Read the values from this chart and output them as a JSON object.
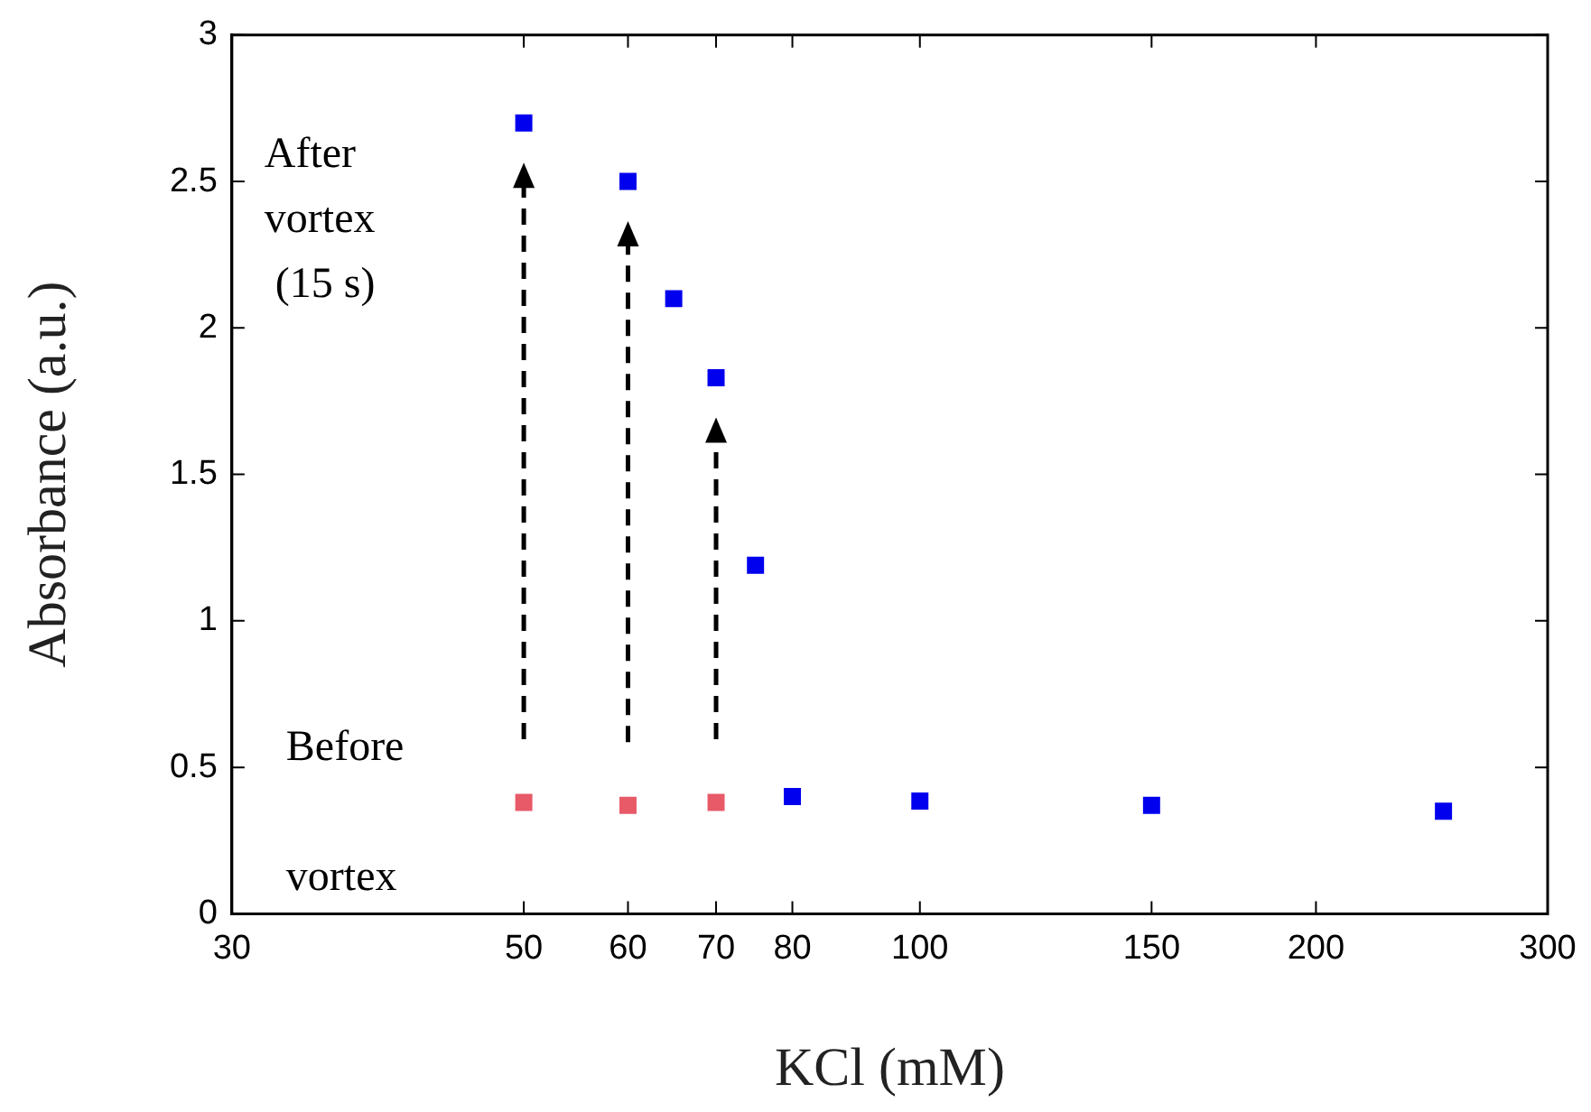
{
  "chart_data": {
    "type": "scatter",
    "xlabel": "KCl (mM)",
    "ylabel": "Absorbance (a.u.)",
    "log": "x",
    "marker": "square",
    "legend": false,
    "grid": false,
    "xlim": [
      30,
      300
    ],
    "xticks": [
      30,
      50,
      60,
      70,
      80,
      100,
      150,
      200,
      300
    ],
    "ylim": [
      0,
      3
    ],
    "yticks": [
      0,
      0.5,
      1,
      1.5,
      2,
      2.5,
      3
    ],
    "series": [
      {
        "color": "#0000ee",
        "x": [
          50,
          60,
          65,
          70,
          75,
          80,
          100,
          150,
          250
        ],
        "values": [
          2.7,
          2.5,
          2.1,
          1.83,
          1.19,
          0.4,
          0.385,
          0.37,
          0.35
        ]
      },
      {
        "color": "#e85a68",
        "x": [
          50,
          60,
          70
        ],
        "values": [
          0.38,
          0.37,
          0.38
        ]
      }
    ],
    "annotations": [
      "After\nvortex\n (15 s)",
      "Before\n\nvortex"
    ]
  }
}
